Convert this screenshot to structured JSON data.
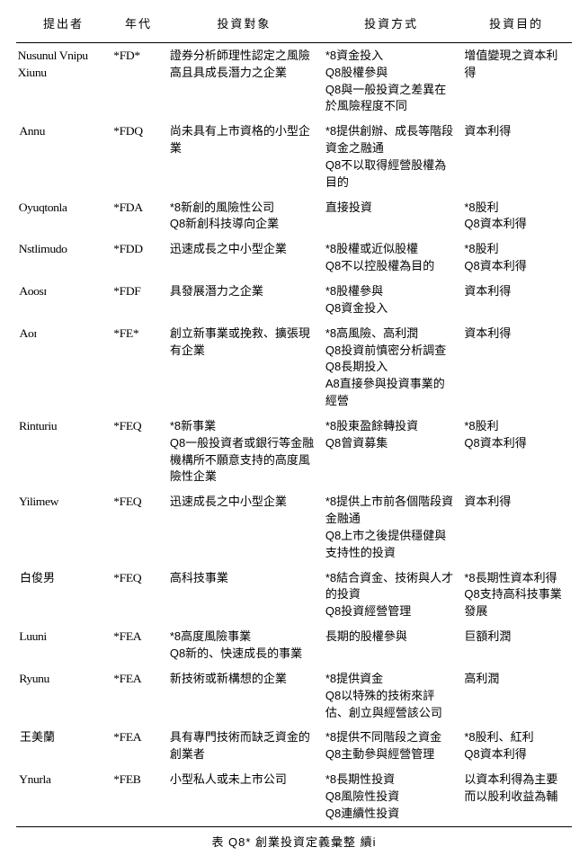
{
  "headers": {
    "author": "提出者",
    "year": "年代",
    "target": "投資對象",
    "method": "投資方式",
    "purpose": "投資目的"
  },
  "rows": [
    {
      "author": "Nusunul Vnipu Xiunu",
      "year": "*FD*",
      "target": "證券分析師理性認定之風險高且具成長潛力之企業",
      "method": "*8資金投入\nQ8股權參與\nQ8與一般投資之差異在於風險程度不同",
      "purpose": "增值變現之資本利得"
    },
    {
      "author": "Annu",
      "year": "*FDQ",
      "target": "尚未具有上市資格的小型企業",
      "method": "*8提供創辦、成長等階段資金之融通\nQ8不以取得經營股權為目的",
      "purpose": "資本利得"
    },
    {
      "author": "Oyuqtonla",
      "year": "*FDA",
      "target": "*8新創的風險性公司\nQ8新創科技導向企業",
      "method": "直接投資",
      "purpose": "*8股利\nQ8資本利得"
    },
    {
      "author": "Nstlimudo",
      "year": "*FDD",
      "target": "迅速成長之中小型企業",
      "method": "*8股權或近似股權\nQ8不以控股權為目的",
      "purpose": "*8股利\nQ8資本利得"
    },
    {
      "author": "Aᴏᴏsɪ",
      "year": "*FDF",
      "target": "具發展潛力之企業",
      "method": "*8股權參與\nQ8資金投入",
      "purpose": "資本利得"
    },
    {
      "author": "Aᴏɪ",
      "year": "*FE*",
      "target": "創立新事業或挽救、擴張現有企業",
      "method": "*8高風險、高利潤\nQ8投資前慎密分析調查\nQ8長期投入\nA8直接參與投資事業的經營",
      "purpose": "資本利得"
    },
    {
      "author": "Rinturiu",
      "year": "*FEQ",
      "target": "*8新事業\nQ8一般投資者或銀行等金融機構所不願意支持的高度風險性企業",
      "method": "*8股東盈餘轉投資\nQ8曾資募集",
      "purpose": "*8股利\nQ8資本利得"
    },
    {
      "author": "Yilimew",
      "year": "*FEQ",
      "target": "迅速成長之中小型企業",
      "method": "*8提供上市前各個階段資金融通\nQ8上市之後提供穩健與支持性的投資",
      "purpose": "資本利得"
    },
    {
      "author": "白俊男",
      "year": "*FEQ",
      "target": "高科技事業",
      "method": "*8結合資金、技術與人才的投資\nQ8投資經營管理",
      "purpose": "*8長期性資本利得\nQ8支持高科技事業發展"
    },
    {
      "author": "Luuni",
      "year": "*FEA",
      "target": "*8高度風險事業\nQ8新的、快速成長的事業",
      "method": "長期的股權參與",
      "purpose": "巨額利潤"
    },
    {
      "author": "Ryunu",
      "year": "*FEA",
      "target": "新技術或新構想的企業",
      "method": "*8提供資金\nQ8以特殊的技術來評估、創立與經營該公司",
      "purpose": "高利潤"
    },
    {
      "author": "王美蘭",
      "year": "*FEA",
      "target": "具有專門技術而缺乏資金的創業者",
      "method": "*8提供不同階段之資金\nQ8主動參與經營管理",
      "purpose": "*8股利、紅利\nQ8資本利得"
    },
    {
      "author": "Ynurla",
      "year": "*FEB",
      "target": "小型私人或未上市公司",
      "method": "*8長期性投資\nQ8風險性投資\nQ8連續性投資",
      "purpose": "以資本利得為主要而以股利收益為輔"
    }
  ],
  "caption": "表 Q8* 創業投資定義彙整 續i"
}
